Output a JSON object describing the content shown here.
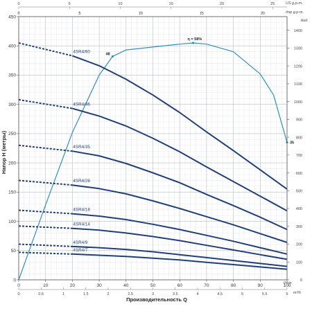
{
  "chart_data": {
    "type": "line",
    "x_axis": {
      "label": "Производительность Q",
      "unit": "l/min",
      "range": [
        0,
        100
      ],
      "ticks": [
        0,
        10,
        20,
        30,
        40,
        50,
        60,
        70,
        80,
        90,
        100
      ]
    },
    "x_axis_m3h": {
      "unit": "m³/h",
      "ticks": [
        "0",
        "0.5",
        "1",
        "1.5",
        "2",
        "2.5",
        "3",
        "3.5",
        "4",
        "4.5",
        "5",
        "5.5",
        "6"
      ],
      "values": [
        0,
        0.5,
        1,
        1.5,
        2,
        2.5,
        3,
        3.5,
        4,
        4.5,
        5,
        5.5,
        6
      ]
    },
    "x_axis_us": {
      "unit": "US g.p.m.",
      "ticks": [
        "0",
        "5",
        "10",
        "15",
        "20",
        "25"
      ],
      "values": [
        0,
        5,
        10,
        15,
        20,
        25
      ]
    },
    "x_axis_imp": {
      "unit": "Imp g.p.m.",
      "ticks": [
        "0",
        "5",
        "10",
        "15",
        "20"
      ],
      "values": [
        0,
        5,
        10,
        15,
        20
      ]
    },
    "y_axis": {
      "label": "Напор H (метры)",
      "range": [
        0,
        450
      ],
      "ticks": [
        0,
        50,
        100,
        150,
        200,
        250,
        300,
        350,
        400,
        450
      ]
    },
    "y_axis_feet": {
      "unit": "feet",
      "ticks": [
        "0",
        "100",
        "200",
        "300",
        "400",
        "500",
        "600",
        "700",
        "800",
        "900",
        "1000",
        "1100",
        "1200",
        "1300",
        "1400"
      ],
      "values": [
        0,
        100,
        200,
        300,
        400,
        500,
        600,
        700,
        800,
        900,
        1000,
        1100,
        1200,
        1300,
        1400
      ]
    },
    "grid": true,
    "series": [
      {
        "name": "4SR4/60",
        "h0": 405,
        "x": [
          20,
          30,
          40,
          50,
          60,
          70,
          80,
          90,
          100
        ],
        "y": [
          383,
          366,
          343,
          316,
          286,
          253,
          221,
          188,
          155
        ]
      },
      {
        "name": "4SR4/46",
        "h0": 308,
        "x": [
          20,
          30,
          40,
          50,
          60,
          70,
          80,
          90,
          100
        ],
        "y": [
          293,
          280,
          263,
          242,
          219,
          193,
          168,
          143,
          118
        ]
      },
      {
        "name": "4SR4/35",
        "h0": 230,
        "x": [
          20,
          30,
          40,
          50,
          60,
          70,
          80,
          90,
          100
        ],
        "y": [
          220,
          212,
          199,
          183,
          166,
          146,
          127,
          107,
          86
        ]
      },
      {
        "name": "4SR4/26",
        "h0": 170,
        "x": [
          20,
          30,
          40,
          50,
          60,
          70,
          80,
          90,
          100
        ],
        "y": [
          162,
          156,
          147,
          135,
          122,
          108,
          94,
          79,
          64
        ]
      },
      {
        "name": "4SR4/18",
        "h0": 119,
        "x": [
          20,
          30,
          40,
          50,
          60,
          70,
          80,
          90,
          100
        ],
        "y": [
          113,
          109,
          103,
          95,
          86,
          76,
          66,
          55,
          44
        ]
      },
      {
        "name": "4SR4/14",
        "h0": 92,
        "x": [
          20,
          30,
          40,
          50,
          60,
          70,
          80,
          90,
          100
        ],
        "y": [
          88,
          85,
          80,
          74,
          67,
          59,
          51,
          43,
          35
        ]
      },
      {
        "name": "4SR4/9",
        "h0": 61,
        "x": [
          20,
          30,
          40,
          50,
          60,
          70,
          80,
          90,
          100
        ],
        "y": [
          57,
          55,
          52,
          48,
          43,
          38,
          33,
          28,
          23
        ]
      },
      {
        "name": "4SR4/7",
        "h0": 47,
        "x": [
          20,
          30,
          40,
          50,
          60,
          70,
          80,
          90,
          100
        ],
        "y": [
          44,
          42,
          40,
          37,
          34,
          30,
          26,
          22,
          18
        ]
      }
    ],
    "efficiency_curve": {
      "x": [
        0,
        10,
        20,
        30,
        35,
        40,
        50,
        60,
        65,
        70,
        80,
        90,
        95,
        100
      ],
      "y": [
        0,
        128,
        252,
        350,
        382,
        393,
        398,
        403,
        405,
        403,
        390,
        352,
        316,
        235
      ],
      "annotations": [
        {
          "label": "48",
          "x": 35,
          "y": 382
        },
        {
          "label": "η = 58%",
          "x": 65,
          "y": 405
        },
        {
          "label": "35",
          "x": 100,
          "y": 235
        }
      ]
    },
    "colors": {
      "curve": "#1f3f78",
      "efficiency": "#2e8fbf",
      "grid": "#d6dbe2",
      "grid_major": "#b5bcc6"
    }
  }
}
